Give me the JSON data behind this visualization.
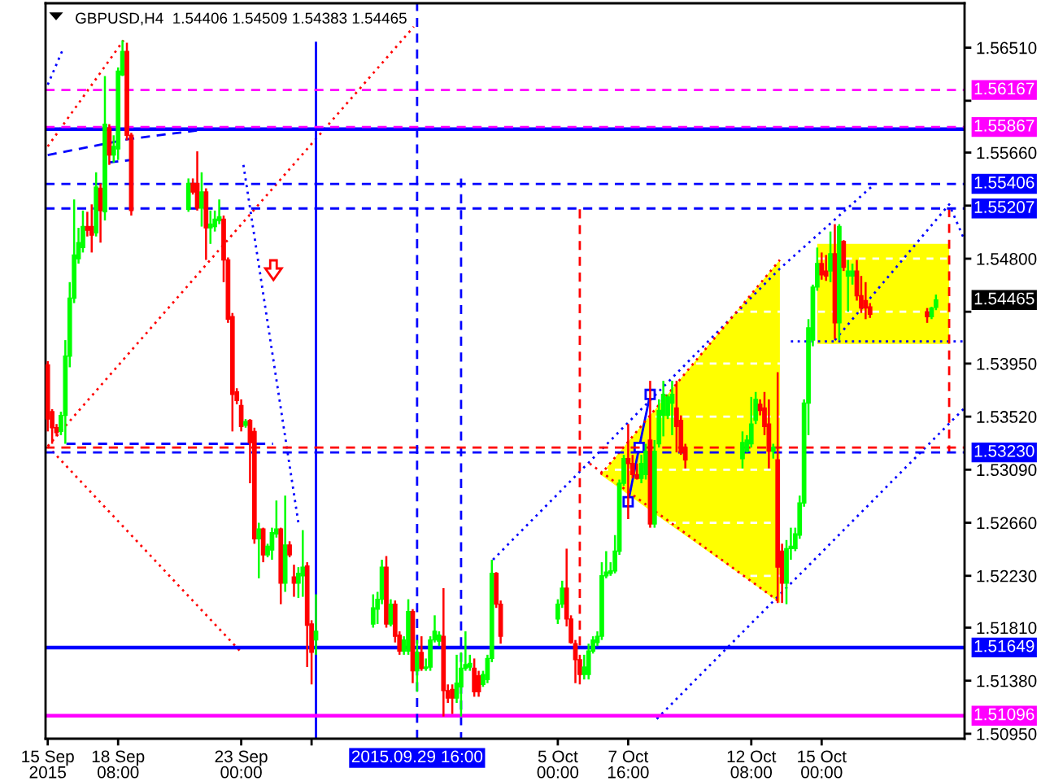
{
  "chart_data": {
    "type": "candlestick",
    "title": "GBPUSD,H4  1.54406 1.54509 1.54383 1.54465",
    "xlim": [
      "2015-09-15T14:00",
      "2015-10-20T10:00"
    ],
    "xticks": [
      {
        "value": "2015-09-15T16:00",
        "label": "15 Sep 2015"
      },
      {
        "value": "2015-09-18T08:00",
        "label": "18 Sep 08:00"
      },
      {
        "value": "2015-09-23T00:00",
        "label": "23 Sep 00:00"
      },
      {
        "value": "2015-09-25T16:00",
        "label": null
      },
      {
        "value": "2015-10-05T00:00",
        "label": "5 Oct 00:00"
      },
      {
        "value": "2015-10-07T16:00",
        "label": "7 Oct 16:00"
      },
      {
        "value": "2015-10-12T08:00",
        "label": "12 Oct 08:00"
      },
      {
        "value": "2015-10-15T00:00",
        "label": "15 Oct 00:00"
      }
    ],
    "ylim": [
      1.5091,
      1.5687
    ],
    "yticks": [
      {
        "value": 1.5651,
        "label": "1.56510"
      },
      {
        "value": 1.5608,
        "label": null
      },
      {
        "value": 1.5566,
        "label": "1.55660"
      },
      {
        "value": 1.5523,
        "label": null
      },
      {
        "value": 1.548,
        "label": "1.54800"
      },
      {
        "value": 1.5437,
        "label": null
      },
      {
        "value": 1.5395,
        "label": "1.53950"
      },
      {
        "value": 1.5352,
        "label": "1.53520"
      },
      {
        "value": 1.5309,
        "label": "1.53090"
      },
      {
        "value": 1.5266,
        "label": "1.52660"
      },
      {
        "value": 1.5223,
        "label": "1.52230"
      },
      {
        "value": 1.5181,
        "label": "1.51810"
      },
      {
        "value": 1.5138,
        "label": "1.51380"
      },
      {
        "value": 1.5095,
        "label": "1.50950"
      }
    ],
    "grid": "y",
    "annotations": [
      "1.54465"
    ],
    "series": [
      {
        "type": "area",
        "color": "#ffff00",
        "x": [
          "2015-10-06T15:00",
          "2015-10-08T12:00",
          "2015-10-12T00:00",
          "2015-10-13T10:00"
        ],
        "values": [
          null,
          null,
          null,
          null
        ],
        "lower": [
          1.5305,
          1.5276,
          1.5223,
          1.5201
        ],
        "upper": [
          1.5305,
          1.5353,
          1.5443,
          1.5479
        ]
      },
      {
        "type": "area",
        "color": "#ffff00",
        "x": [
          "2015-10-14T20:00",
          "2015-10-16T00:00",
          "2015-10-19T00:00",
          "2015-10-19T20:00"
        ],
        "values": [
          null,
          null,
          null,
          null
        ],
        "lower": [
          1.5411,
          1.5411,
          1.5411,
          1.5411
        ],
        "upper": [
          1.5492,
          1.5492,
          1.5492,
          1.5492
        ]
      },
      {
        "type": "line",
        "color": "#ff0000",
        "line_style": "dotted",
        "x": [
          "2015-09-15T16:00",
          "2015-09-18T13:00"
        ],
        "values": [
          1.5571,
          1.5657
        ]
      },
      {
        "type": "line",
        "color": "#ff0000",
        "line_style": "dotted",
        "x": [
          "2015-09-15T16:00",
          "2015-09-29T13:00"
        ],
        "values": [
          1.5328,
          1.5668
        ]
      },
      {
        "type": "line",
        "color": "#ff0000",
        "line_style": "dotted",
        "x": [
          "2015-09-15T16:00",
          "2015-09-22T23:00"
        ],
        "values": [
          1.5328,
          1.5162
        ]
      },
      {
        "type": "line",
        "color": "#0000ff",
        "line_style": "dotted",
        "x": [
          "2015-09-15T16:00",
          "2015-09-16T05:00"
        ],
        "values": [
          1.5621,
          1.5648
        ]
      },
      {
        "type": "line",
        "color": "#0000ff",
        "line_style": "dashed",
        "x": [
          "2015-09-15T16:00",
          "2015-09-18T18:00",
          "2015-09-22T03:00",
          "2015-09-23T06:00"
        ],
        "values": [
          1.5564,
          1.5577,
          1.5586,
          1.5586
        ]
      },
      {
        "type": "line",
        "color": "#0000ff",
        "line_style": "dashed",
        "x": [
          "2015-09-18T00:00",
          "2015-09-18T20:00"
        ],
        "values": [
          1.5558,
          1.556
        ]
      },
      {
        "type": "line",
        "color": "#0000ff",
        "line_style": "dotted",
        "x": [
          "2015-09-23T02:00",
          "2015-09-25T04:00"
        ],
        "values": [
          1.5556,
          1.5266
        ]
      },
      {
        "type": "line",
        "color": "#0000ff",
        "line_style": "dashed",
        "x": [
          "2015-09-16T09:00",
          "2015-09-24T05:00"
        ],
        "values": [
          1.533,
          1.533
        ]
      },
      {
        "type": "line",
        "color": "#0000ff",
        "line_style": "dotted",
        "x": [
          "2015-10-02T13:00",
          "2015-10-13T10:00",
          "2015-10-16T21:00"
        ],
        "values": [
          1.5236,
          1.5472,
          1.5538
        ]
      },
      {
        "type": "line",
        "color": "#0000ff",
        "line_style": "dotted",
        "x": [
          "2015-10-08T18:00",
          "2015-10-20T10:00"
        ],
        "values": [
          1.5107,
          1.5359
        ]
      },
      {
        "type": "line",
        "color": "#0000ff",
        "line_style": "dotted",
        "x": [
          "2015-10-15T12:00",
          "2015-10-19T20:00",
          "2015-10-20T10:00"
        ],
        "values": [
          1.5414,
          1.5524,
          1.5495
        ]
      },
      {
        "type": "line",
        "color": "#0000ff",
        "line_style": "dotted",
        "x": [
          "2015-10-13T20:00",
          "2015-10-20T10:00"
        ],
        "values": [
          1.5413,
          1.5413
        ]
      },
      {
        "type": "line",
        "color": "#0000ff",
        "line_style": "solid",
        "marker": "square",
        "x": [
          "2015-10-07T16:00",
          "2015-10-08T02:00",
          "2015-10-08T12:00"
        ],
        "values": [
          1.5283,
          1.5327,
          1.537
        ]
      },
      {
        "type": "line",
        "color": "#ff0000",
        "line_style": "dotted",
        "x": [
          "2015-10-06T15:00",
          "2015-10-13T10:00"
        ],
        "values": [
          1.5305,
          1.5479
        ]
      },
      {
        "type": "line",
        "color": "#ff0000",
        "line_style": "dotted",
        "x": [
          "2015-10-06T05:00",
          "2015-10-13T11:00"
        ],
        "values": [
          1.5314,
          1.5201
        ]
      },
      {
        "type": "line",
        "color": "#0000ff",
        "line_style": "solid",
        "x": [
          "2015-09-25T20:00",
          "2015-09-25T20:00"
        ],
        "values": [
          1.5655,
          1.5091
        ]
      },
      {
        "type": "line",
        "color": "#0000ff",
        "line_style": "dashed",
        "x": [
          "2015-10-01T08:00",
          "2015-10-01T08:00"
        ],
        "values": [
          1.5545,
          1.5091
        ]
      },
      {
        "type": "line",
        "color": "#ff0000",
        "line_style": "dashed",
        "x": [
          "2015-10-05T20:00",
          "2015-10-05T20:00"
        ],
        "values": [
          1.552,
          1.5161
        ]
      },
      {
        "type": "line",
        "color": "#ff0000",
        "line_style": "dashed",
        "x": [
          "2015-10-19T20:00",
          "2015-10-19T20:00"
        ],
        "values": [
          1.5521,
          1.5323
        ]
      },
      {
        "x": [
          "2015-09-15T16:00",
          "2015-09-15T20:00",
          "2015-09-16T00:00",
          "2015-09-16T04:00",
          "2015-09-16T08:00",
          "2015-09-16T12:00",
          "2015-09-16T16:00",
          "2015-09-16T20:00",
          "2015-09-17T00:00",
          "2015-09-17T04:00",
          "2015-09-17T08:00",
          "2015-09-17T12:00",
          "2015-09-17T16:00",
          "2015-09-17T20:00",
          "2015-09-18T00:00",
          "2015-09-18T04:00",
          "2015-09-18T08:00",
          "2015-09-18T12:00",
          "2015-09-18T16:00",
          "2015-09-18T20:00",
          "2015-09-21T00:00",
          "2015-09-21T04:00",
          "2015-09-21T08:00",
          "2015-09-21T12:00",
          "2015-09-21T16:00",
          "2015-09-21T20:00",
          "2015-09-22T00:00",
          "2015-09-22T04:00",
          "2015-09-22T08:00",
          "2015-09-22T12:00",
          "2015-09-22T16:00",
          "2015-09-22T20:00",
          "2015-09-23T00:00",
          "2015-09-23T04:00",
          "2015-09-23T08:00",
          "2015-09-23T12:00",
          "2015-09-23T16:00",
          "2015-09-23T20:00",
          "2015-09-24T00:00",
          "2015-09-24T04:00",
          "2015-09-24T08:00",
          "2015-09-24T12:00",
          "2015-09-24T16:00",
          "2015-09-24T20:00",
          "2015-09-25T00:00",
          "2015-09-25T04:00",
          "2015-09-25T08:00",
          "2015-09-25T12:00",
          "2015-09-25T16:00",
          "2015-09-25T20:00",
          "2015-09-28T00:00",
          "2015-09-28T04:00",
          "2015-09-28T08:00",
          "2015-09-28T12:00",
          "2015-09-28T16:00",
          "2015-09-28T20:00",
          "2015-09-29T00:00",
          "2015-09-29T04:00",
          "2015-09-29T08:00",
          "2015-09-29T12:00",
          "2015-09-29T16:00",
          "2015-09-29T20:00",
          "2015-09-30T00:00",
          "2015-09-30T04:00",
          "2015-09-30T08:00",
          "2015-09-30T12:00",
          "2015-09-30T16:00",
          "2015-09-30T20:00",
          "2015-10-01T00:00",
          "2015-10-01T04:00",
          "2015-10-01T08:00",
          "2015-10-01T12:00",
          "2015-10-01T16:00",
          "2015-10-01T20:00",
          "2015-10-02T00:00",
          "2015-10-02T04:00",
          "2015-10-02T08:00",
          "2015-10-02T12:00",
          "2015-10-02T16:00",
          "2015-10-02T20:00",
          "2015-10-05T00:00",
          "2015-10-05T04:00",
          "2015-10-05T08:00",
          "2015-10-05T12:00",
          "2015-10-05T16:00",
          "2015-10-05T20:00",
          "2015-10-06T00:00",
          "2015-10-06T04:00",
          "2015-10-06T08:00",
          "2015-10-06T12:00",
          "2015-10-06T16:00",
          "2015-10-06T20:00",
          "2015-10-07T00:00",
          "2015-10-07T04:00",
          "2015-10-07T08:00",
          "2015-10-07T12:00",
          "2015-10-07T16:00",
          "2015-10-07T20:00",
          "2015-10-08T00:00",
          "2015-10-08T04:00",
          "2015-10-08T08:00",
          "2015-10-08T12:00",
          "2015-10-08T16:00",
          "2015-10-08T20:00",
          "2015-10-09T00:00",
          "2015-10-09T04:00",
          "2015-10-09T08:00",
          "2015-10-09T12:00",
          "2015-10-09T16:00",
          "2015-10-09T20:00",
          "2015-10-12T00:00",
          "2015-10-12T04:00",
          "2015-10-12T08:00",
          "2015-10-12T12:00",
          "2015-10-12T16:00",
          "2015-10-12T20:00",
          "2015-10-13T00:00",
          "2015-10-13T04:00",
          "2015-10-13T08:00",
          "2015-10-13T12:00",
          "2015-10-13T16:00",
          "2015-10-13T20:00",
          "2015-10-14T00:00",
          "2015-10-14T04:00",
          "2015-10-14T08:00",
          "2015-10-14T12:00",
          "2015-10-14T16:00",
          "2015-10-14T20:00",
          "2015-10-15T00:00",
          "2015-10-15T04:00",
          "2015-10-15T08:00",
          "2015-10-15T12:00",
          "2015-10-15T16:00",
          "2015-10-15T20:00",
          "2015-10-16T00:00",
          "2015-10-16T04:00",
          "2015-10-16T08:00",
          "2015-10-16T12:00",
          "2015-10-16T16:00",
          "2015-10-16T20:00",
          "2015-10-19T00:00",
          "2015-10-19T04:00",
          "2015-10-19T08:00"
        ],
        "ohlc": [
          [
            1.5394,
            1.5397,
            1.534,
            1.535
          ],
          [
            1.5356,
            1.5358,
            1.533,
            1.5343
          ],
          [
            1.5343,
            1.5346,
            1.5336,
            1.5339
          ],
          [
            1.534,
            1.5356,
            1.5337,
            1.5353
          ],
          [
            1.5353,
            1.5414,
            1.533,
            1.5401
          ],
          [
            1.5401,
            1.5461,
            1.5392,
            1.5448
          ],
          [
            1.5448,
            1.5528,
            1.5444,
            1.5483
          ],
          [
            1.548,
            1.5505,
            1.5476,
            1.5493
          ],
          [
            1.5489,
            1.5519,
            1.5485,
            1.5506
          ],
          [
            1.5506,
            1.5518,
            1.5498,
            1.5503
          ],
          [
            1.5506,
            1.5524,
            1.5485,
            1.5499
          ],
          [
            1.5501,
            1.555,
            1.5498,
            1.5538
          ],
          [
            1.5537,
            1.5541,
            1.5493,
            1.5519
          ],
          [
            1.5518,
            1.5628,
            1.5511,
            1.5589
          ],
          [
            1.5586,
            1.5589,
            1.5556,
            1.5564
          ],
          [
            1.5564,
            1.558,
            1.5558,
            1.5571
          ],
          [
            1.5569,
            1.5635,
            1.556,
            1.5632
          ],
          [
            1.5629,
            1.5657,
            1.5628,
            1.5648
          ],
          [
            1.5648,
            1.5655,
            1.5576,
            1.558
          ],
          [
            1.558,
            1.5582,
            1.5515,
            1.5519
          ],
          [
            1.552,
            1.5545,
            1.5518,
            1.5541
          ],
          [
            1.5541,
            1.5545,
            1.5532,
            1.5534
          ],
          [
            1.5541,
            1.5567,
            1.5519,
            1.5521
          ],
          [
            1.5521,
            1.555,
            1.5506,
            1.5534
          ],
          [
            1.5534,
            1.5537,
            1.5479,
            1.5505
          ],
          [
            1.5505,
            1.5519,
            1.5492,
            1.5508
          ],
          [
            1.5506,
            1.5519,
            1.5502,
            1.5512
          ],
          [
            1.5511,
            1.5528,
            1.5508,
            1.5514
          ],
          [
            1.5512,
            1.5515,
            1.5461,
            1.5479
          ],
          [
            1.5479,
            1.5481,
            1.5428,
            1.5431
          ],
          [
            1.5433,
            1.5436,
            1.534,
            1.537
          ],
          [
            1.5372,
            1.5375,
            1.5362,
            1.5365
          ],
          [
            1.5361,
            1.5366,
            1.534,
            1.5344
          ],
          [
            1.5345,
            1.535,
            1.5343,
            1.5348
          ],
          [
            1.5349,
            1.535,
            1.5298,
            1.5331
          ],
          [
            1.534,
            1.5343,
            1.5249,
            1.5253
          ],
          [
            1.5253,
            1.5266,
            1.5221,
            1.5261
          ],
          [
            1.5261,
            1.5262,
            1.5234,
            1.524
          ],
          [
            1.524,
            1.5249,
            1.5238,
            1.5247
          ],
          [
            1.5244,
            1.5262,
            1.5236,
            1.5258
          ],
          [
            1.5257,
            1.5284,
            1.5254,
            1.5261
          ],
          [
            1.5261,
            1.5262,
            1.52,
            1.5217
          ],
          [
            1.5217,
            1.5288,
            1.521,
            1.5248
          ],
          [
            1.5248,
            1.5251,
            1.5238,
            1.524
          ],
          [
            1.5222,
            1.5232,
            1.5206,
            1.5217
          ],
          [
            1.5217,
            1.523,
            1.5205,
            1.5225
          ],
          [
            1.5223,
            1.526,
            1.5206,
            1.523
          ],
          [
            1.5231,
            1.5234,
            1.5149,
            1.5183
          ],
          [
            1.5184,
            1.5187,
            1.5135,
            1.5161
          ],
          [
            1.5171,
            1.5208,
            1.5159,
            1.5178
          ],
          [
            1.5184,
            1.5208,
            1.5181,
            1.5197
          ],
          [
            1.5196,
            1.521,
            1.5184,
            1.5204
          ],
          [
            1.5204,
            1.5236,
            1.52,
            1.523
          ],
          [
            1.523,
            1.5239,
            1.5181,
            1.5184
          ],
          [
            1.5184,
            1.5204,
            1.5182,
            1.52
          ],
          [
            1.52,
            1.5203,
            1.5169,
            1.5174
          ],
          [
            1.5175,
            1.5178,
            1.5159,
            1.5162
          ],
          [
            1.5162,
            1.5174,
            1.5159,
            1.5171
          ],
          [
            1.5162,
            1.5204,
            1.5159,
            1.5194
          ],
          [
            1.5194,
            1.5196,
            1.5136,
            1.5146
          ],
          [
            1.5146,
            1.5171,
            1.5129,
            1.5161
          ],
          [
            1.5161,
            1.5174,
            1.5146,
            1.5148
          ],
          [
            1.5148,
            1.5156,
            1.5146,
            1.5149
          ],
          [
            1.5149,
            1.5174,
            1.5146,
            1.5171
          ],
          [
            1.5171,
            1.5191,
            1.5169,
            1.5178
          ],
          [
            1.517,
            1.5178,
            1.5166,
            1.5175
          ],
          [
            1.5174,
            1.5213,
            1.5109,
            1.513
          ],
          [
            1.513,
            1.5135,
            1.512,
            1.5124
          ],
          [
            1.5131,
            1.5135,
            1.5111,
            1.5124
          ],
          [
            1.5124,
            1.5159,
            1.512,
            1.5136
          ],
          [
            1.5133,
            1.5161,
            1.5109,
            1.5148
          ],
          [
            1.5148,
            1.5178,
            1.5146,
            1.5151
          ],
          [
            1.5149,
            1.5159,
            1.5146,
            1.5152
          ],
          [
            1.5148,
            1.5156,
            1.5125,
            1.5129
          ],
          [
            1.5142,
            1.5146,
            1.5125,
            1.5129
          ],
          [
            1.5135,
            1.5146,
            1.5133,
            1.5143
          ],
          [
            1.5139,
            1.5159,
            1.5136,
            1.5156
          ],
          [
            1.5156,
            1.5236,
            1.5153,
            1.5225
          ],
          [
            1.5225,
            1.5226,
            1.5197,
            1.52
          ],
          [
            1.52,
            1.5203,
            1.5168,
            1.5174
          ],
          [
            1.5188,
            1.5204,
            1.5184,
            1.52
          ],
          [
            1.52,
            1.5219,
            1.5197,
            1.5213
          ],
          [
            1.5213,
            1.5245,
            1.5182,
            1.5188
          ],
          [
            1.5188,
            1.5191,
            1.5168,
            1.5169
          ],
          [
            1.5168,
            1.5171,
            1.5136,
            1.5155
          ],
          [
            1.5155,
            1.5159,
            1.5135,
            1.5143
          ],
          [
            1.5143,
            1.5159,
            1.5139,
            1.5149
          ],
          [
            1.5143,
            1.5168,
            1.5139,
            1.5162
          ],
          [
            1.5162,
            1.5174,
            1.516,
            1.5171
          ],
          [
            1.5169,
            1.5178,
            1.5166,
            1.5174
          ],
          [
            1.5174,
            1.5234,
            1.5171,
            1.5223
          ],
          [
            1.5223,
            1.5243,
            1.5221,
            1.5226
          ],
          [
            1.5225,
            1.5234,
            1.5223,
            1.5227
          ],
          [
            1.5227,
            1.5256,
            1.5225,
            1.5243
          ],
          [
            1.5243,
            1.5301,
            1.524,
            1.5298
          ],
          [
            1.5298,
            1.5321,
            1.5296,
            1.5318
          ],
          [
            1.5318,
            1.5346,
            1.5269,
            1.5314
          ],
          [
            1.5314,
            1.5321,
            1.5302,
            1.5305
          ],
          [
            1.5305,
            1.5314,
            1.5301,
            1.5302
          ],
          [
            1.5302,
            1.5321,
            1.5298,
            1.5314
          ],
          [
            1.5305,
            1.533,
            1.5301,
            1.5324
          ],
          [
            1.5333,
            1.5381,
            1.5262,
            1.5265
          ],
          [
            1.5265,
            1.5333,
            1.5262,
            1.5324
          ],
          [
            1.533,
            1.5366,
            1.5327,
            1.5357
          ],
          [
            1.5353,
            1.5381,
            1.5336,
            1.537
          ],
          [
            1.5353,
            1.537,
            1.535,
            1.5368
          ],
          [
            1.5363,
            1.5381,
            1.5337,
            1.537
          ],
          [
            1.5359,
            1.5381,
            1.5323,
            1.5344
          ],
          [
            1.5349,
            1.5353,
            1.5321,
            1.5323
          ],
          [
            1.5327,
            1.533,
            1.531,
            1.5317
          ],
          [
            1.5318,
            1.534,
            1.531,
            1.5331
          ],
          [
            1.5324,
            1.5337,
            1.5323,
            1.5333
          ],
          [
            1.533,
            1.5368,
            1.5327,
            1.5346
          ],
          [
            1.5349,
            1.5372,
            1.5346,
            1.5366
          ],
          [
            1.5362,
            1.5366,
            1.5353,
            1.5357
          ],
          [
            1.5359,
            1.5372,
            1.5337,
            1.5344
          ],
          [
            1.5346,
            1.5366,
            1.531,
            1.5324
          ],
          [
            1.5324,
            1.533,
            1.5318,
            1.5327
          ],
          [
            1.5317,
            1.5388,
            1.5201,
            1.523
          ],
          [
            1.5243,
            1.5249,
            1.5201,
            1.5217
          ],
          [
            1.5217,
            1.5252,
            1.52,
            1.5245
          ],
          [
            1.5245,
            1.5262,
            1.5236,
            1.5247
          ],
          [
            1.5245,
            1.5262,
            1.5243,
            1.5257
          ],
          [
            1.5256,
            1.5288,
            1.5253,
            1.5282
          ],
          [
            1.5282,
            1.5366,
            1.5279,
            1.5363
          ],
          [
            1.5363,
            1.5431,
            1.5337,
            1.5424
          ],
          [
            1.5414,
            1.5459,
            1.5409,
            1.5457
          ],
          [
            1.5457,
            1.5489,
            1.5454,
            1.5476
          ],
          [
            1.5476,
            1.5485,
            1.5463,
            1.5467
          ],
          [
            1.547,
            1.5483,
            1.5462,
            1.5466
          ],
          [
            1.547,
            1.5502,
            1.5461,
            1.5484
          ],
          [
            1.5484,
            1.5508,
            1.5415,
            1.5428
          ],
          [
            1.5428,
            1.5508,
            1.5414,
            1.5506
          ],
          [
            1.5494,
            1.5495,
            1.547,
            1.5473
          ],
          [
            1.5466,
            1.5479,
            1.5437,
            1.547
          ],
          [
            1.5466,
            1.5476,
            1.5459,
            1.547
          ],
          [
            1.547,
            1.5479,
            1.5446,
            1.545
          ],
          [
            1.545,
            1.5466,
            1.5436,
            1.544
          ],
          [
            1.5446,
            1.5461,
            1.5431,
            1.544
          ],
          [
            1.5441,
            1.5444,
            1.5432,
            1.5435
          ],
          [
            1.5437,
            1.544,
            1.5428,
            1.5433
          ],
          [
            1.5433,
            1.5441,
            1.5431,
            1.544
          ],
          [
            1.54406,
            1.54509,
            1.54383,
            1.54465
          ]
        ],
        "colors": [
          "#ff0000",
          "#ff0000",
          "#ff0000",
          "#00ff00",
          "#00ff00",
          "#00ff00",
          "#00ff00",
          "#00ff00",
          "#00ff00",
          "#ff0000",
          "#ff0000",
          "#00ff00",
          "#ff0000",
          "#00ff00",
          "#ff0000",
          "#00ff00",
          "#00ff00",
          "#00ff00",
          "#ff0000",
          "#ff0000",
          "#00ff00",
          "#ff0000",
          "#ff0000",
          "#00ff00",
          "#ff0000",
          "#00ff00",
          "#00ff00",
          "#00ff00",
          "#ff0000",
          "#ff0000",
          "#ff0000",
          "#ff0000",
          "#ff0000",
          "#00ff00",
          "#ff0000",
          "#ff0000",
          "#00ff00",
          "#ff0000",
          "#00ff00",
          "#00ff00",
          "#00ff00",
          "#ff0000",
          "#00ff00",
          "#ff0000",
          "#ff0000",
          "#00ff00",
          "#00ff00",
          "#ff0000",
          "#ff0000",
          "#00ff00",
          "#00ff00",
          "#00ff00",
          "#00ff00",
          "#ff0000",
          "#00ff00",
          "#ff0000",
          "#ff0000",
          "#00ff00",
          "#00ff00",
          "#ff0000",
          "#00ff00",
          "#ff0000",
          "#00ff00",
          "#00ff00",
          "#00ff00",
          "#00ff00",
          "#ff0000",
          "#ff0000",
          "#ff0000",
          "#00ff00",
          "#00ff00",
          "#00ff00",
          "#00ff00",
          "#ff0000",
          "#ff0000",
          "#00ff00",
          "#00ff00",
          "#00ff00",
          "#ff0000",
          "#ff0000",
          "#00ff00",
          "#00ff00",
          "#ff0000",
          "#ff0000",
          "#ff0000",
          "#ff0000",
          "#00ff00",
          "#00ff00",
          "#00ff00",
          "#00ff00",
          "#00ff00",
          "#00ff00",
          "#00ff00",
          "#00ff00",
          "#00ff00",
          "#00ff00",
          "#ff0000",
          "#ff0000",
          "#ff0000",
          "#00ff00",
          "#00ff00",
          "#ff0000",
          "#00ff00",
          "#00ff00",
          "#00ff00",
          "#00ff00",
          "#00ff00",
          "#ff0000",
          "#ff0000",
          "#ff0000",
          "#00ff00",
          "#00ff00",
          "#00ff00",
          "#00ff00",
          "#ff0000",
          "#ff0000",
          "#ff0000",
          "#00ff00",
          "#ff0000",
          "#ff0000",
          "#00ff00",
          "#00ff00",
          "#00ff00",
          "#00ff00",
          "#00ff00",
          "#00ff00",
          "#00ff00",
          "#00ff00",
          "#ff0000",
          "#ff0000",
          "#00ff00",
          "#ff0000",
          "#00ff00",
          "#ff0000",
          "#00ff00",
          "#00ff00",
          "#ff0000",
          "#ff0000",
          "#ff0000",
          "#ff0000",
          "#ff0000",
          "#00ff00",
          "#00ff00"
        ]
      }
    ],
    "ref_lines": [
      {
        "axis": "y",
        "value": 1.5585,
        "color": "#0000ff",
        "line_style": "solid"
      },
      {
        "axis": "y",
        "value": 1.56167,
        "label": "1.56167",
        "color": "#ff00ff",
        "line_style": "dashed"
      },
      {
        "axis": "y",
        "value": 1.55867,
        "label": "1.55867",
        "color": "#ff00ff",
        "line_style": "dashed"
      },
      {
        "axis": "y",
        "value": 1.55406,
        "label": "1.55406",
        "color": "#0000ff",
        "line_style": "dashed"
      },
      {
        "axis": "y",
        "value": 1.55207,
        "label": "1.55207",
        "color": "#0000ff",
        "line_style": "dashed"
      },
      {
        "axis": "y",
        "value": 1.5327,
        "color": "#ff0000",
        "line_style": "dashed"
      },
      {
        "axis": "y",
        "value": 1.5323,
        "label": "1.53230",
        "color": "#0000ff",
        "line_style": "dashed"
      },
      {
        "axis": "y",
        "value": 1.51649,
        "label": "1.51649",
        "color": "#0000ff",
        "line_style": "solid"
      },
      {
        "axis": "y",
        "value": 1.51096,
        "label": "1.51096",
        "color": "#ff00ff",
        "line_style": "solid"
      },
      {
        "axis": "x",
        "value": "2015-09-29T16:00",
        "label": "2015.09.29 16:00",
        "color": "#0000ff",
        "line_style": "dashed"
      }
    ]
  }
}
